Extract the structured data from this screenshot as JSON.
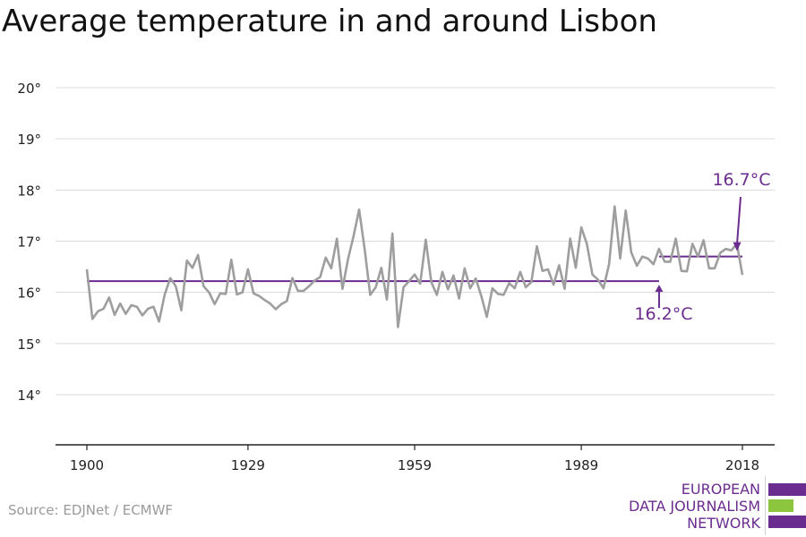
{
  "colors": {
    "line": "#9e9e9e",
    "average": "#6a2c8f",
    "grid": "#d9d9d9",
    "axis": "#222222",
    "accent_green": "#8cc63f"
  },
  "footer": {
    "source": "Source: EDJNet / ECMWF",
    "logo": {
      "line1": "EUROPEAN",
      "line2": "DATA JOURNALISM",
      "line3": "NETWORK"
    }
  },
  "chart_data": {
    "type": "line",
    "title": "Average temperature in and around Lisbon",
    "xlim": [
      1900,
      2018
    ],
    "ylim": [
      13,
      20
    ],
    "x_ticks": [
      1900,
      1929,
      1959,
      1989,
      2018
    ],
    "x_tick_labels": [
      "1900",
      "1929",
      "1959",
      "1989",
      "2018"
    ],
    "y_ticks": [
      14,
      15,
      16,
      17,
      18,
      19,
      20
    ],
    "y_tick_labels": [
      "14°",
      "15°",
      "16°",
      "17°",
      "18°",
      "19°",
      "20°"
    ],
    "grid": true,
    "series": [
      {
        "x_start": 1900,
        "x_end": 2018,
        "values": [
          16.45,
          15.48,
          15.63,
          15.68,
          15.9,
          15.56,
          15.78,
          15.58,
          15.75,
          15.72,
          15.55,
          15.68,
          15.72,
          15.43,
          15.95,
          16.28,
          16.12,
          15.65,
          16.62,
          16.48,
          16.73,
          16.12,
          16.0,
          15.77,
          15.98,
          15.97,
          16.64,
          15.96,
          16.0,
          16.45,
          15.98,
          15.93,
          15.85,
          15.78,
          15.67,
          15.77,
          15.83,
          16.28,
          16.03,
          16.03,
          16.12,
          16.23,
          16.3,
          16.68,
          16.47,
          17.05,
          16.07,
          16.65,
          17.1,
          17.62,
          16.84,
          15.95,
          16.1,
          16.48,
          15.86,
          17.15,
          15.32,
          16.1,
          16.22,
          16.35,
          16.17,
          17.03,
          16.2,
          15.95,
          16.4,
          16.06,
          16.33,
          15.88,
          16.47,
          16.08,
          16.27,
          15.93,
          15.52,
          16.08,
          15.97,
          15.95,
          16.18,
          16.08,
          16.4,
          16.1,
          16.2,
          16.9,
          16.42,
          16.45,
          16.15,
          16.53,
          16.07,
          17.05,
          16.48,
          17.27,
          16.95,
          16.35,
          16.25,
          16.08,
          16.55,
          17.68,
          16.66,
          17.6,
          16.78,
          16.52,
          16.7,
          16.66,
          16.55,
          16.85,
          16.6,
          16.6,
          17.05,
          16.42,
          16.41,
          16.95,
          16.7,
          17.02,
          16.47,
          16.47,
          16.77,
          16.85,
          16.82,
          16.95,
          16.34
        ]
      }
    ],
    "averages": [
      {
        "label": "16.2°C",
        "value": 16.22,
        "x_start": 1900,
        "x_end": 2003
      },
      {
        "label": "16.7°C",
        "value": 16.7,
        "x_start": 2003,
        "x_end": 2018
      }
    ]
  }
}
